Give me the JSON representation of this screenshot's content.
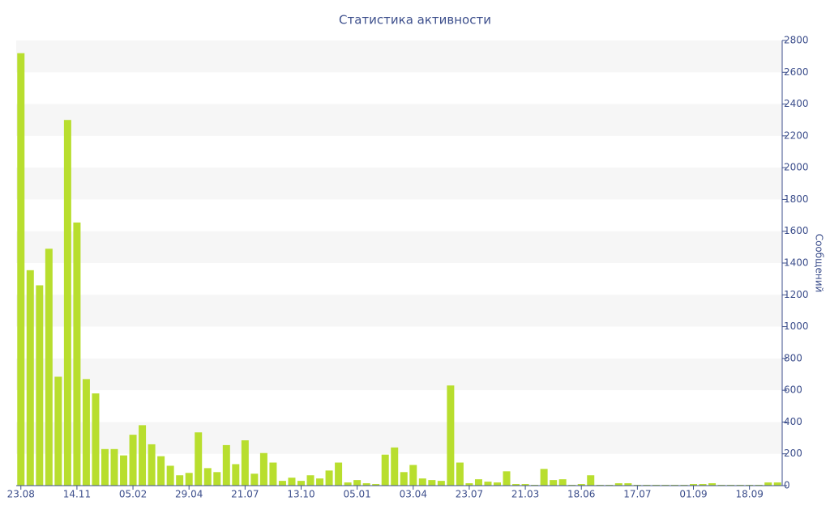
{
  "chart_data": {
    "type": "bar",
    "title": "Статистика активности",
    "y_label": "Сообщений",
    "categories": [
      "23.08",
      null,
      null,
      null,
      null,
      null,
      "14.11",
      null,
      null,
      null,
      null,
      null,
      "05.02",
      null,
      null,
      null,
      null,
      null,
      "29.04",
      null,
      null,
      null,
      null,
      null,
      "21.07",
      null,
      null,
      null,
      null,
      null,
      "13.10",
      null,
      null,
      null,
      null,
      null,
      "05.01",
      null,
      null,
      null,
      null,
      null,
      "03.04",
      null,
      null,
      null,
      null,
      null,
      "23.07",
      null,
      null,
      null,
      null,
      null,
      "21.03",
      null,
      null,
      null,
      null,
      null,
      "18.06",
      null,
      null,
      null,
      null,
      null,
      "17.07",
      null,
      null,
      null,
      null,
      null,
      "01.09",
      null,
      null,
      null,
      null,
      null,
      "18.09",
      null,
      null,
      null
    ],
    "values": [
      2720,
      1355,
      1260,
      1490,
      685,
      2300,
      1655,
      670,
      580,
      230,
      230,
      190,
      320,
      380,
      260,
      185,
      125,
      65,
      80,
      335,
      110,
      85,
      255,
      135,
      285,
      75,
      205,
      145,
      30,
      50,
      30,
      65,
      45,
      95,
      145,
      20,
      35,
      15,
      10,
      195,
      240,
      85,
      130,
      45,
      35,
      30,
      630,
      145,
      15,
      40,
      25,
      20,
      90,
      10,
      10,
      5,
      105,
      35,
      40,
      5,
      10,
      65,
      5,
      5,
      15,
      15,
      5,
      5,
      5,
      5,
      5,
      5,
      10,
      10,
      15,
      5,
      5,
      5,
      5,
      5,
      20,
      20
    ],
    "color": "#b8de2e",
    "ylim": [
      0,
      2800
    ],
    "yticks": [
      0,
      200,
      400,
      600,
      800,
      1000,
      1200,
      1400,
      1600,
      1800,
      2000,
      2200,
      2400,
      2600,
      2800
    ],
    "grid": true
  }
}
